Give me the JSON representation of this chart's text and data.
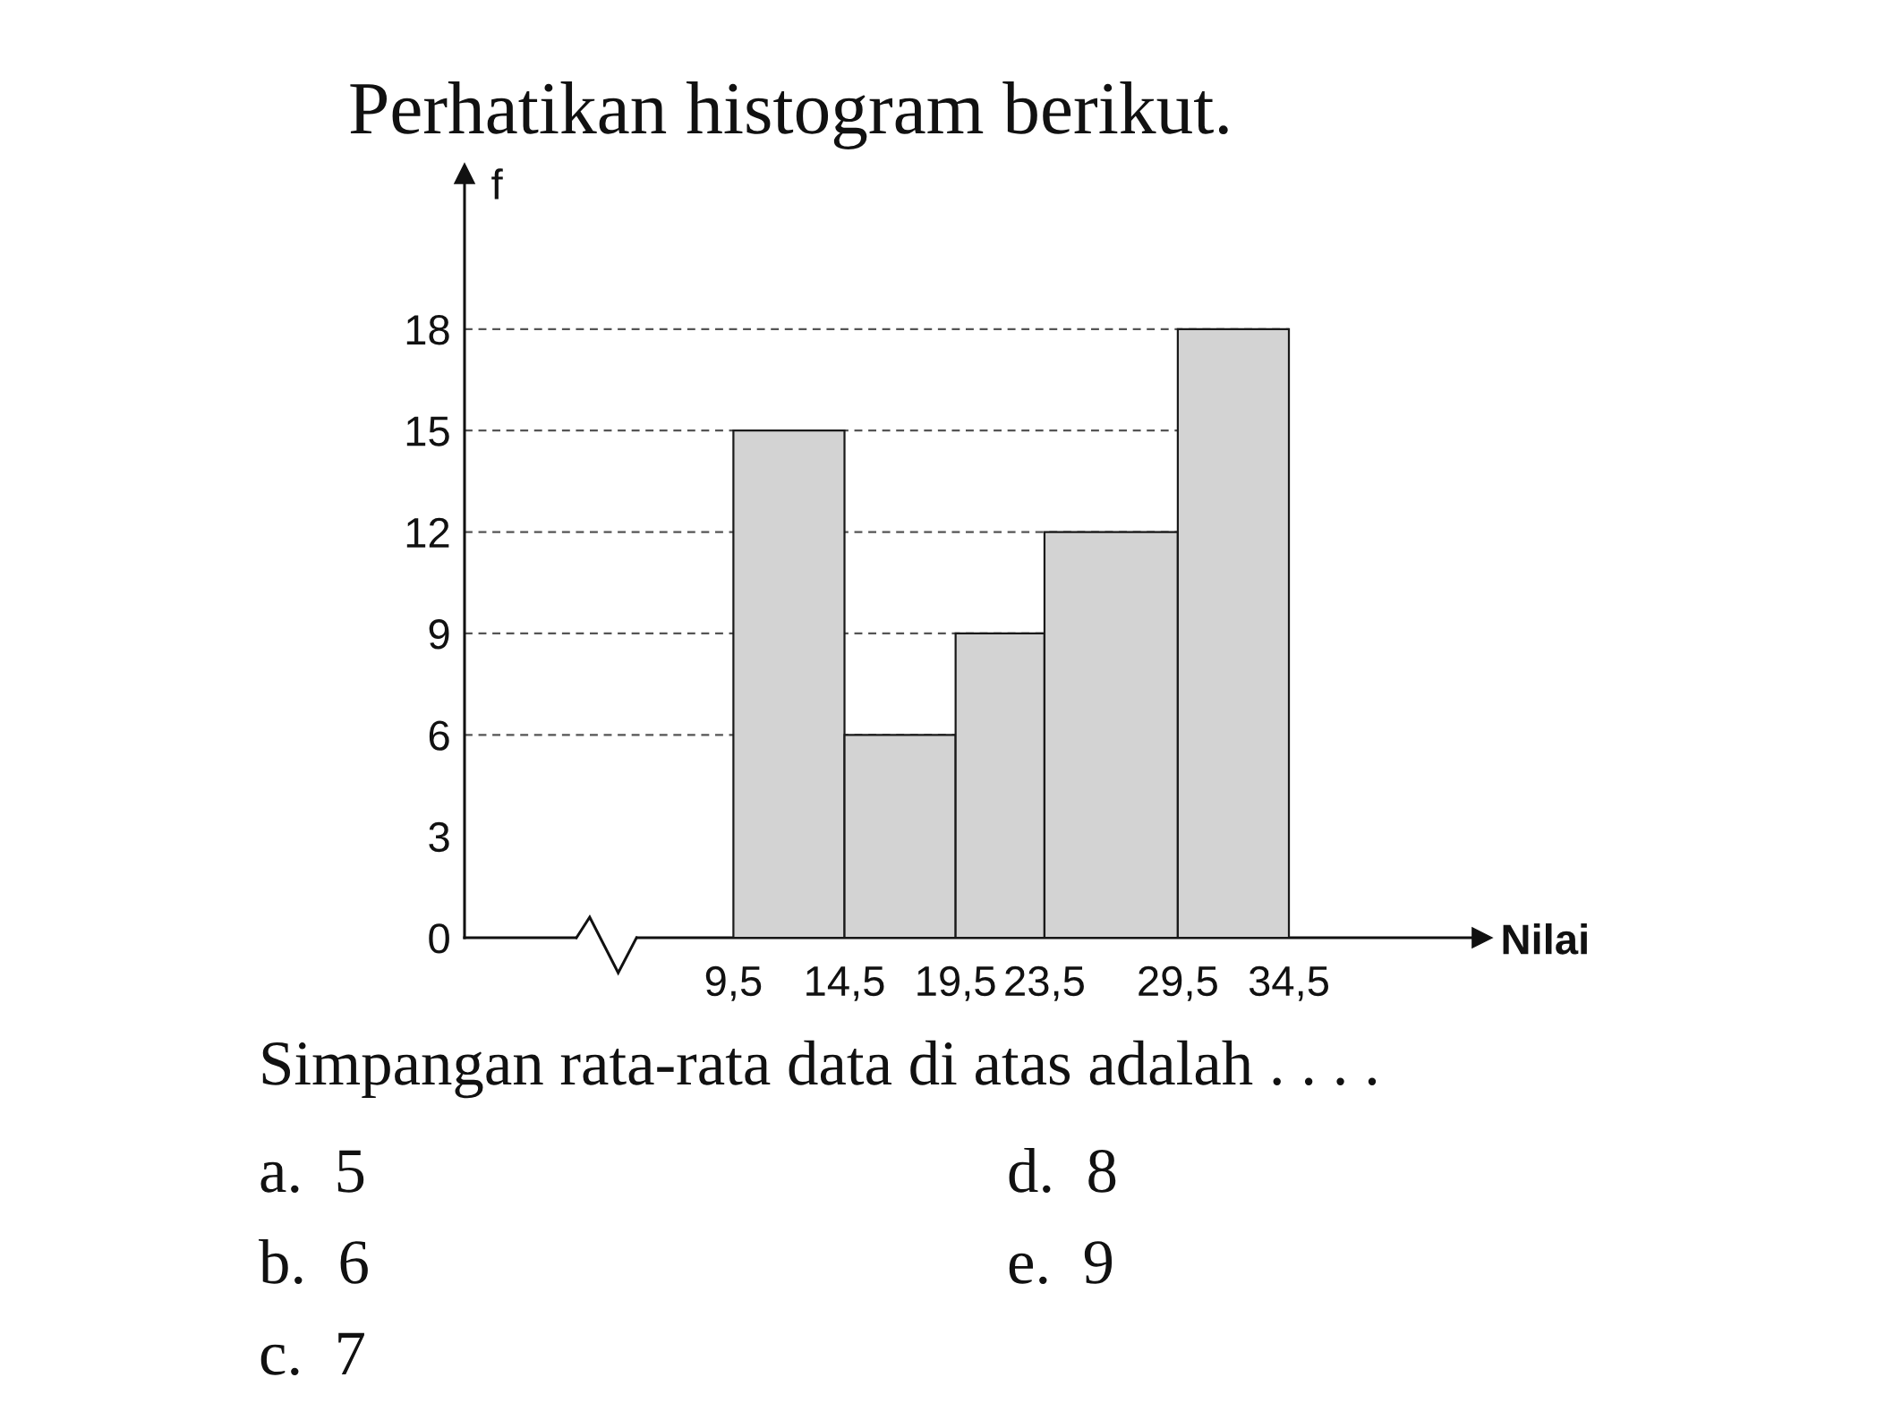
{
  "chart_data": {
    "type": "histogram",
    "title": "Perhatikan histogram berikut.",
    "xlabel": "Nilai",
    "ylabel": "f",
    "bins": [
      9.5,
      14.5,
      19.5,
      23.5,
      29.5,
      34.5
    ],
    "values": [
      15,
      6,
      9,
      12,
      18
    ],
    "color": "#d3d3d3",
    "xlim": [
      -2.6,
      43.2
    ],
    "ylim": [
      0,
      22.6
    ],
    "xticks": [
      {
        "value": 9.5,
        "label": "9,5"
      },
      {
        "value": 14.5,
        "label": "14,5"
      },
      {
        "value": 19.5,
        "label": "19,5"
      },
      {
        "value": 23.5,
        "label": "23,5"
      },
      {
        "value": 29.5,
        "label": "29,5"
      },
      {
        "value": 34.5,
        "label": "34,5"
      }
    ],
    "yticks": [
      0,
      3,
      6,
      9,
      12,
      15,
      18
    ],
    "ref_lines": [
      {
        "axis": "y",
        "value": 6,
        "line_style": "dashed",
        "color": "#555555"
      },
      {
        "axis": "y",
        "value": 9,
        "line_style": "dashed",
        "color": "#555555"
      },
      {
        "axis": "y",
        "value": 12,
        "line_style": "dashed",
        "color": "#555555"
      },
      {
        "axis": "y",
        "value": 15,
        "line_style": "dashed",
        "color": "#555555"
      },
      {
        "axis": "y",
        "value": 18,
        "line_style": "dashed",
        "color": "#555555"
      }
    ],
    "annotations": [
      "Simpangan rata-rata data di atas adalah . . . .",
      "a.  5",
      "b.  6",
      "c.  7",
      "d.  8",
      "e.  9"
    ]
  }
}
